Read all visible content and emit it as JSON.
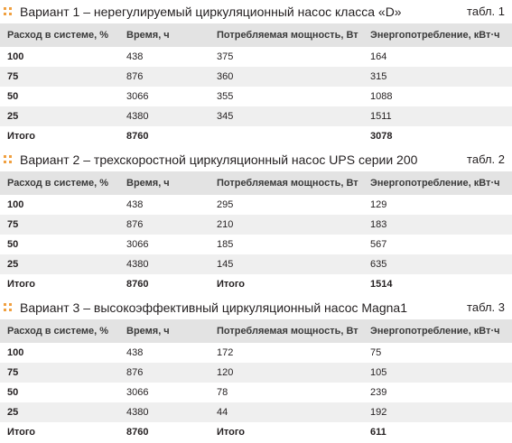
{
  "tables": [
    {
      "title": "Вариант 1 – нерегулируемый циркуляционный насос класса «D»",
      "label": "табл. 1",
      "header": [
        "Расход в системе, %",
        "Время, ч",
        "Потребляемая мощность, Вт",
        "Энергопотребление, кВт·ч"
      ],
      "rows": [
        [
          100,
          438,
          375,
          164
        ],
        [
          75,
          876,
          360,
          315
        ],
        [
          50,
          3066,
          355,
          1088
        ],
        [
          25,
          4380,
          345,
          1511
        ],
        [
          "Итого",
          8760,
          null,
          3078
        ]
      ]
    },
    {
      "title": "Вариант 2 – трехскоростной циркуляционный насос UPS серии 200",
      "label": "табл. 2",
      "header": [
        "Расход в системе, %",
        "Время, ч",
        "Потребляемая мощность, Вт",
        "Энергопотребление, кВт·ч"
      ],
      "rows": [
        [
          100,
          438,
          295,
          129
        ],
        [
          75,
          876,
          210,
          183
        ],
        [
          50,
          3066,
          185,
          567
        ],
        [
          25,
          4380,
          145,
          635
        ],
        [
          "Итого",
          8760,
          "Итого",
          1514
        ]
      ]
    },
    {
      "title": "Вариант 3 – высокоэффективный циркуляционный насос Magna1",
      "label": "табл. 3",
      "header": [
        "Расход в системе, %",
        "Время, ч",
        "Потребляемая мощность, Вт",
        "Энергопотребление, кВт·ч"
      ],
      "rows": [
        [
          100,
          438,
          172,
          75
        ],
        [
          75,
          876,
          120,
          105
        ],
        [
          50,
          3066,
          78,
          239
        ],
        [
          25,
          4380,
          44,
          192
        ],
        [
          "Итого",
          8760,
          "Итого",
          611
        ]
      ]
    }
  ]
}
